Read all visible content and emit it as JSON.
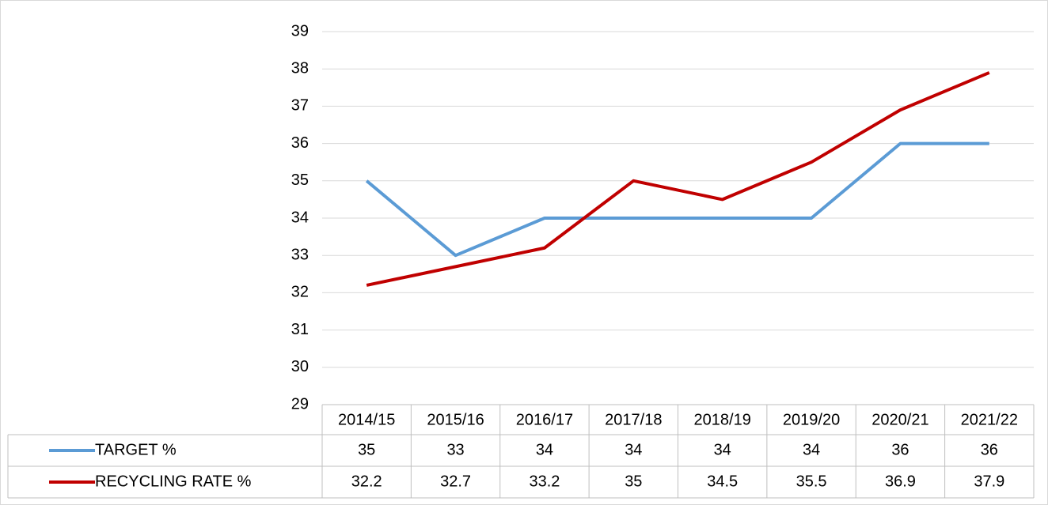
{
  "chart_data": {
    "type": "line",
    "categories": [
      "2014/15",
      "2015/16",
      "2016/17",
      "2017/18",
      "2018/19",
      "2019/20",
      "2020/21",
      "2021/22"
    ],
    "series": [
      {
        "name": "TARGET %",
        "color": "#5b9bd5",
        "values": [
          35,
          33,
          34,
          34,
          34,
          34,
          36,
          36
        ]
      },
      {
        "name": "RECYCLING RATE %",
        "color": "#c00000",
        "values": [
          32.2,
          32.7,
          33.2,
          35,
          34.5,
          35.5,
          36.9,
          37.9
        ]
      }
    ],
    "ylim": [
      29,
      39
    ],
    "yticks": [
      29,
      30,
      31,
      32,
      33,
      34,
      35,
      36,
      37,
      38,
      39
    ],
    "grid": true
  }
}
